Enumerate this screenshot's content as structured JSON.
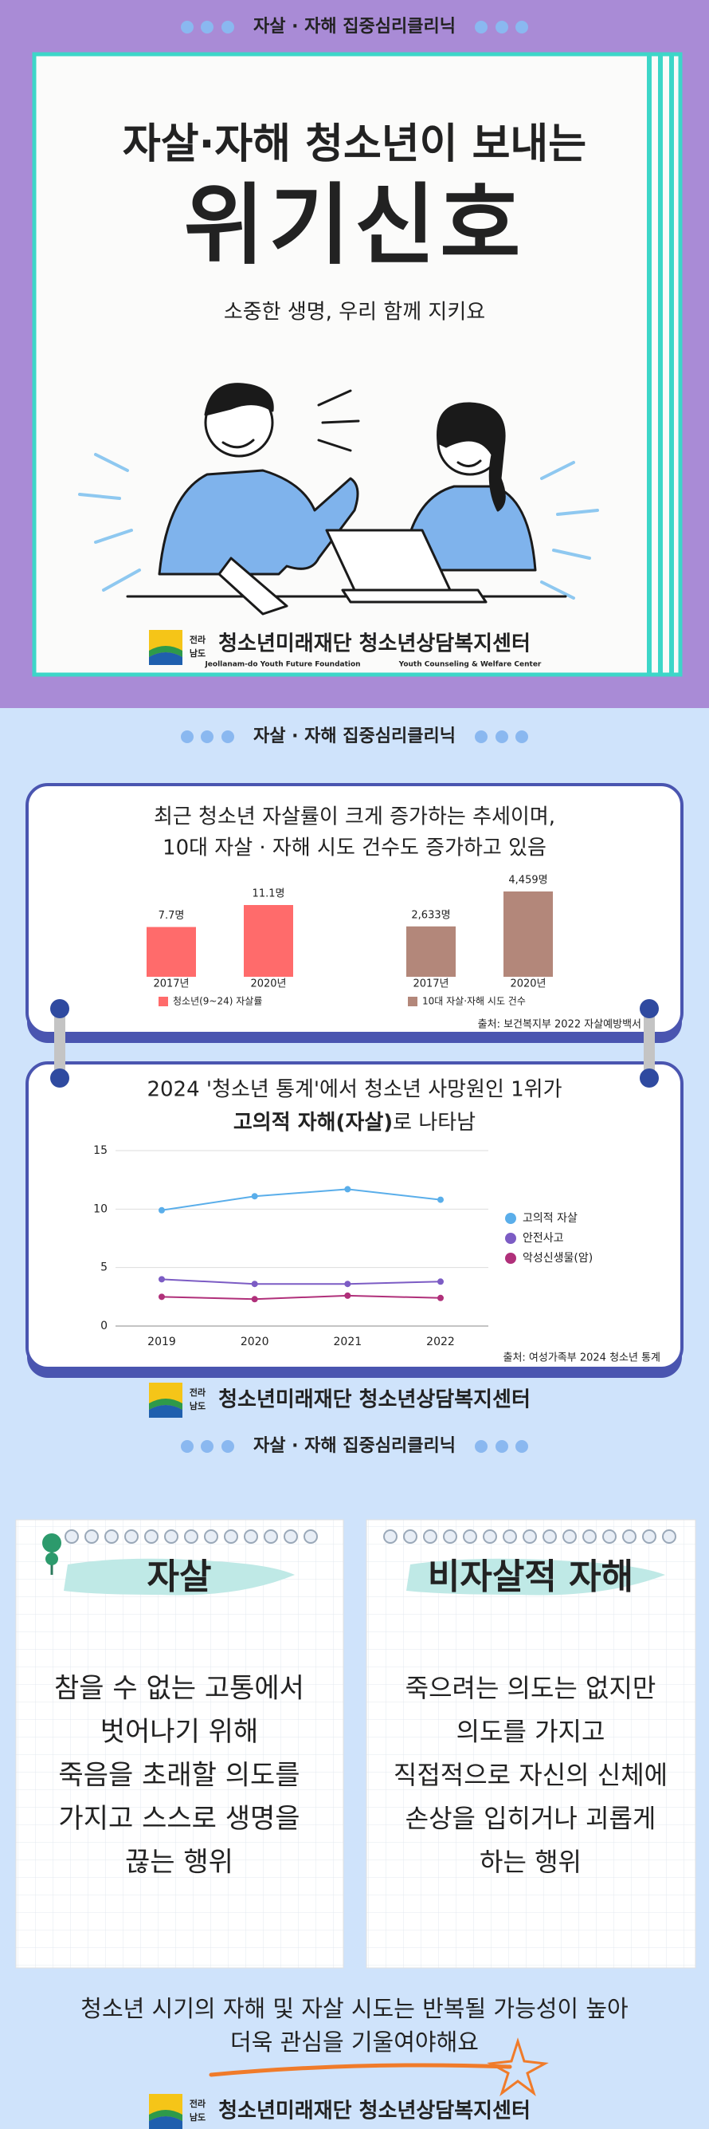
{
  "poster": {
    "banner": "자살 · 자해 집중심리클리닉",
    "title_line1": "자살·자해 청소년이 보내는",
    "title_line2": "위기신호",
    "subtitle": "소중한 생명, 우리 함께 지키요",
    "logo": {
      "region_top": "전라",
      "region_bottom": "남도",
      "name": "청소년미래재단 청소년상담복지센터",
      "english_left": "Jeollanam-do Youth Future Foundation",
      "english_right": "Youth Counseling & Welfare Center"
    }
  },
  "stats": {
    "banner": "자살 · 자해 집중심리클리닉",
    "card1_lines": [
      "최근 청소년 자살률이 크게 증가하는 추세이며,",
      "10대 자살 · 자해 시도 건수도 증가하고 있음"
    ],
    "card1_source": "출처: 보건복지부 2022 자살예방백서",
    "card2_line1": "2024 '청소년 통계'에서 청소년 사망원인 1위가",
    "card2_bold": "고의적 자해(자살)",
    "card2_rest": "로 나타남",
    "card2_source": "출처: 여성가족부 2024 청소년 통계",
    "logo": {
      "region_top": "전라",
      "region_bottom": "남도",
      "name": "청소년미래재단 청소년상담복지센터"
    }
  },
  "chart_data": [
    {
      "type": "bar",
      "categories": [
        "2017년",
        "2020년"
      ],
      "series": [
        {
          "name": "청소년(9~24) 자살률",
          "color": "#ff6b6b",
          "values": [
            7.7,
            11.1
          ],
          "value_labels": [
            "7.7명",
            "11.1명"
          ]
        }
      ]
    },
    {
      "type": "bar",
      "categories": [
        "2017년",
        "2020년"
      ],
      "series": [
        {
          "name": "10대 자살·자해 시도 건수",
          "color": "#b3877a",
          "values": [
            2633,
            4459
          ],
          "value_labels": [
            "2,633명",
            "4,459명"
          ]
        }
      ]
    },
    {
      "type": "line",
      "categories": [
        "2019",
        "2020",
        "2021",
        "2022"
      ],
      "ylim": [
        0,
        15
      ],
      "yticks": [
        0,
        5,
        10,
        15
      ],
      "grid": true,
      "series": [
        {
          "name": "고의적 자살",
          "color": "#5aaeea",
          "values": [
            9.9,
            11.1,
            11.7,
            10.8
          ]
        },
        {
          "name": "안전사고",
          "color": "#7c5cc4",
          "values": [
            4.0,
            3.6,
            3.6,
            3.8
          ]
        },
        {
          "name": "악성신생물(암)",
          "color": "#b0307a",
          "values": [
            2.5,
            2.3,
            2.6,
            2.4
          ]
        }
      ]
    }
  ],
  "definitions": {
    "banner": "자살 · 자해 집중심리클리닉",
    "cards": [
      {
        "title": "자살",
        "lines": [
          "참을 수 없는 고통에서",
          "벗어나기 위해",
          "죽음을 초래할 의도를",
          "가지고 스스로 생명을",
          "끊는 행위"
        ]
      },
      {
        "title": "비자살적 자해",
        "lines": [
          "죽으려는 의도는 없지만",
          "의도를 가지고",
          "직접적으로 자신의 신체에",
          "손상을 입히거나 괴롭게",
          "하는 행위"
        ]
      }
    ],
    "closing": [
      "청소년 시기의 자해 및 자살 시도는 반복될 가능성이 높아",
      "더욱 관심을 기울여야해요"
    ],
    "logo": {
      "region_top": "전라",
      "region_bottom": "남도",
      "name": "청소년미래재단 청소년상담복지센터"
    }
  }
}
